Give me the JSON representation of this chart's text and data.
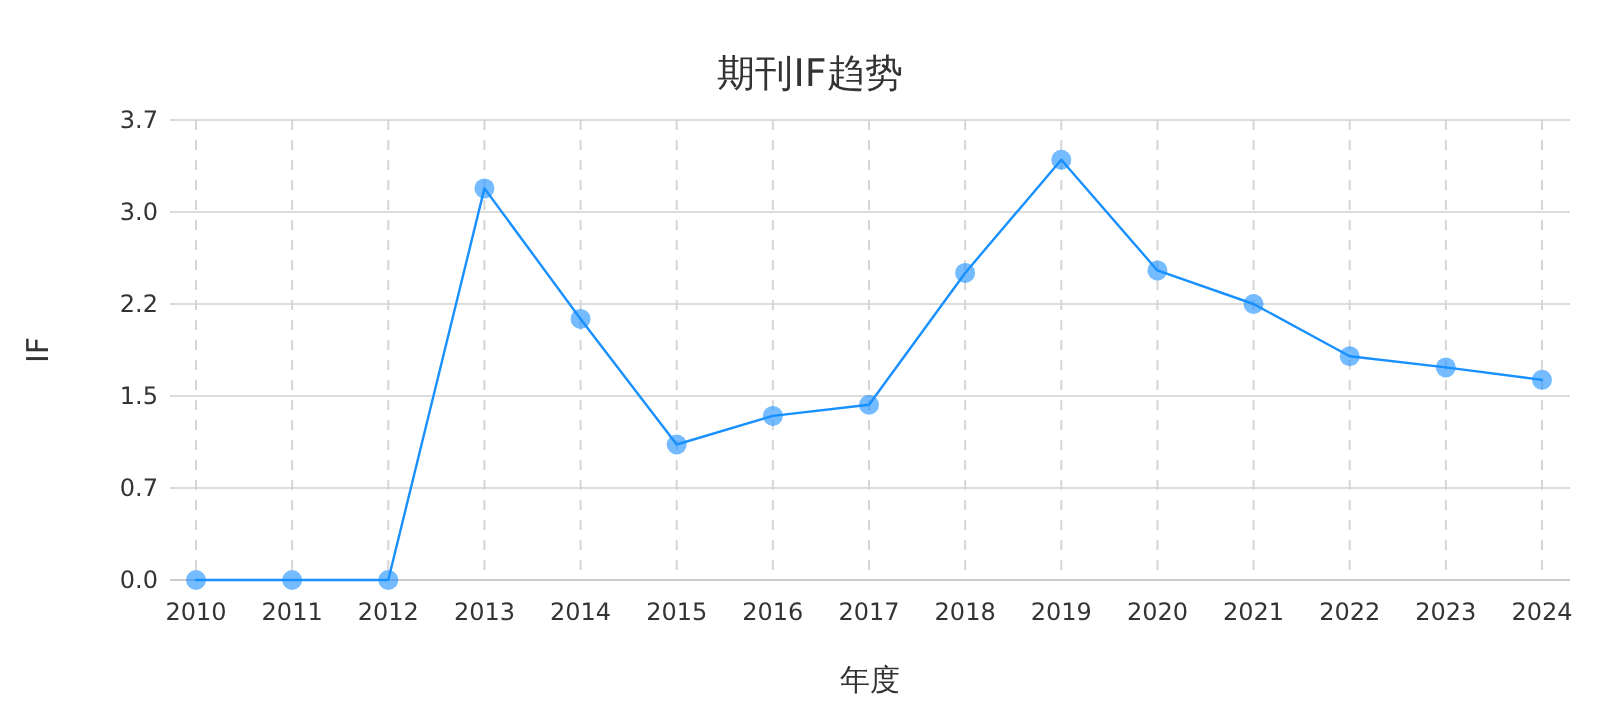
{
  "chart_data": {
    "type": "line",
    "title": "期刊IF趋势",
    "xlabel": "年度",
    "ylabel": "IF",
    "categories": [
      "2010",
      "2011",
      "2012",
      "2013",
      "2014",
      "2015",
      "2016",
      "2017",
      "2018",
      "2019",
      "2020",
      "2021",
      "2022",
      "2023",
      "2024"
    ],
    "series": [
      {
        "color": "#1890ff",
        "values": [
          0,
          0,
          0,
          3.15,
          2.1,
          1.09,
          1.32,
          1.41,
          2.47,
          3.38,
          2.49,
          2.22,
          1.8,
          1.71,
          1.61
        ]
      }
    ],
    "ylim": [
      0,
      3.7
    ],
    "yticks": [
      {
        "value": 0,
        "label": "0.0"
      },
      {
        "value": 0.74,
        "label": "0.7"
      },
      {
        "value": 1.48,
        "label": "1.5"
      },
      {
        "value": 2.22,
        "label": "2.2"
      },
      {
        "value": 2.96,
        "label": "3.0"
      },
      {
        "value": 3.7,
        "label": "3.7"
      }
    ],
    "grid": true,
    "marker": "circle"
  }
}
